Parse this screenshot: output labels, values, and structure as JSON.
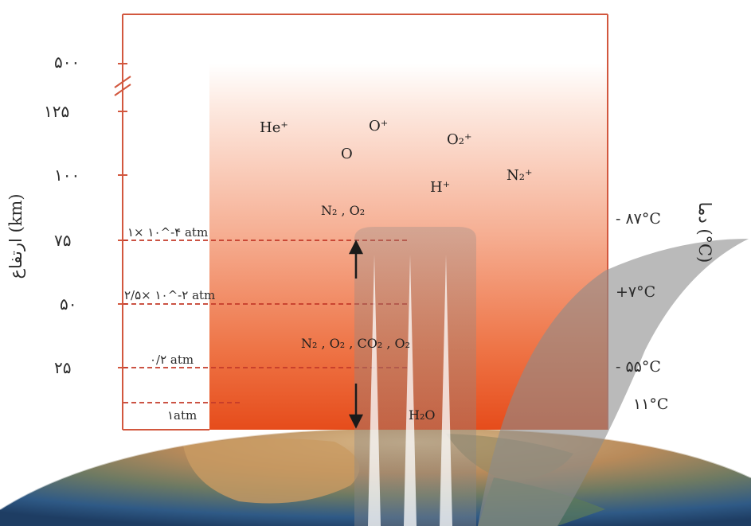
{
  "axis": {
    "altitude_title": "ارتفاع (km)",
    "temperature_title": "دما (°C)",
    "altitude_ticks": [
      "۵۰۰",
      "۱۲۵",
      "۱۰۰",
      "۷۵",
      "۵۰",
      "۲۵"
    ]
  },
  "pressure_labels": [
    "۱× ۱۰^-۴ atm",
    "۲/۵× ۱۰^-۲ atm",
    "۰/۲ atm",
    "۱atm"
  ],
  "temperatures": [
    "- ۸۷°C",
    "+۷°C",
    "- ۵۵°C",
    "۱۱°C"
  ],
  "species": {
    "upper": [
      "He⁺",
      "O⁺",
      "O",
      "O₂⁺",
      "H⁺",
      "N₂⁺"
    ],
    "mid": "N₂ , O₂",
    "low": "N₂ , O₂ , CO₂ , O₂",
    "surface": "H₂O"
  },
  "colors": {
    "frame": "#d2573e",
    "gradient_top": "#fdf3ee",
    "gradient_mid": "#f5a785",
    "gradient_bottom": "#e8501e",
    "dashed": "#c43b2a",
    "watermark": "#9a9a9a"
  }
}
